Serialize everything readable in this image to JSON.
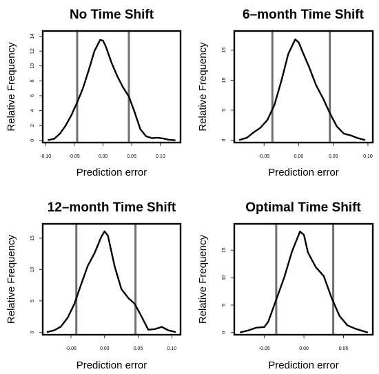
{
  "chart_data": [
    {
      "type": "line",
      "title": "No Time Shift",
      "xlabel": "Prediction error",
      "ylabel": "Relative Frequency",
      "xlim": [
        -0.105,
        0.135
      ],
      "ylim": [
        -0.3,
        14.7
      ],
      "xticks": [
        -0.1,
        -0.05,
        0.0,
        0.05,
        0.1
      ],
      "xtick_labels": [
        "-0.10",
        "-0.05",
        "0.00",
        "0.05",
        "0.10"
      ],
      "yticks": [
        0,
        2,
        4,
        6,
        8,
        10,
        12,
        14
      ],
      "ytick_labels": [
        "0",
        "2",
        "4",
        "6",
        "8",
        "10",
        "12",
        "14"
      ],
      "vlines": [
        -0.045,
        0.045
      ],
      "series": [
        {
          "x": [
            -0.095,
            -0.085,
            -0.075,
            -0.065,
            -0.055,
            -0.045,
            -0.035,
            -0.025,
            -0.015,
            -0.005,
            0.0,
            0.005,
            0.015,
            0.025,
            0.035,
            0.045,
            0.055,
            0.065,
            0.075,
            0.085,
            0.095,
            0.105,
            0.115,
            0.125
          ],
          "values": [
            0.05,
            0.2,
            0.9,
            2.0,
            3.4,
            5.1,
            7.0,
            9.4,
            12.0,
            13.5,
            13.4,
            12.6,
            10.4,
            8.6,
            7.1,
            5.9,
            3.8,
            1.5,
            0.55,
            0.3,
            0.35,
            0.25,
            0.08,
            0.02
          ]
        }
      ]
    },
    {
      "type": "line",
      "title": "6–month Time Shift",
      "xlabel": "Prediction error",
      "ylabel": "Relative Frequency",
      "xlim": [
        -0.093,
        0.107
      ],
      "ylim": [
        -0.4,
        18.2
      ],
      "xticks": [
        -0.05,
        0.0,
        0.05,
        0.1
      ],
      "xtick_labels": [
        "-0.05",
        "0.00",
        "0.05",
        "0.10"
      ],
      "yticks": [
        0,
        5,
        10,
        15
      ],
      "ytick_labels": [
        "0",
        "5",
        "10",
        "15"
      ],
      "vlines": [
        -0.038,
        0.045
      ],
      "series": [
        {
          "x": [
            -0.085,
            -0.075,
            -0.065,
            -0.055,
            -0.045,
            -0.035,
            -0.025,
            -0.015,
            -0.005,
            0.0,
            0.005,
            0.015,
            0.025,
            0.035,
            0.045,
            0.055,
            0.065,
            0.075,
            0.085,
            0.095
          ],
          "values": [
            0.05,
            0.4,
            1.3,
            2.1,
            3.4,
            5.9,
            9.9,
            14.4,
            16.8,
            16.3,
            14.9,
            12.2,
            9.2,
            7.0,
            4.5,
            2.3,
            1.1,
            0.8,
            0.35,
            0.05
          ]
        }
      ]
    },
    {
      "type": "line",
      "title": "12–month Time Shift",
      "xlabel": "Prediction error",
      "ylabel": "Relative Frequency",
      "xlim": [
        -0.092,
        0.113
      ],
      "ylim": [
        -0.4,
        17.3
      ],
      "xticks": [
        -0.05,
        0.0,
        0.05,
        0.1
      ],
      "xtick_labels": [
        "-0.05",
        "0.00",
        "0.05",
        "0.10"
      ],
      "yticks": [
        0,
        5,
        10,
        15
      ],
      "ytick_labels": [
        "0",
        "5",
        "10",
        "15"
      ],
      "vlines": [
        -0.042,
        0.046
      ],
      "series": [
        {
          "x": [
            -0.085,
            -0.075,
            -0.065,
            -0.055,
            -0.045,
            -0.035,
            -0.025,
            -0.015,
            -0.005,
            0.0,
            0.005,
            0.015,
            0.025,
            0.035,
            0.045,
            0.055,
            0.065,
            0.075,
            0.085,
            0.095,
            0.105
          ],
          "values": [
            0.05,
            0.3,
            0.9,
            2.3,
            4.5,
            7.6,
            10.6,
            12.6,
            15.2,
            16.1,
            15.4,
            10.5,
            6.9,
            5.5,
            4.5,
            2.5,
            0.4,
            0.5,
            0.85,
            0.3,
            0.05
          ]
        }
      ]
    },
    {
      "type": "line",
      "title": "Optimal Time Shift",
      "xlabel": "Prediction error",
      "ylabel": "Relative Frequency",
      "xlim": [
        -0.088,
        0.087
      ],
      "ylim": [
        -0.4,
        19.8
      ],
      "xticks": [
        -0.05,
        0.0,
        0.05
      ],
      "xtick_labels": [
        "-0.05",
        "0.00",
        "0.05"
      ],
      "yticks": [
        0,
        5,
        10,
        15
      ],
      "ytick_labels": [
        "0",
        "5",
        "10",
        "15"
      ],
      "vlines": [
        -0.035,
        0.037
      ],
      "series": [
        {
          "x": [
            -0.08,
            -0.07,
            -0.06,
            -0.05,
            -0.045,
            -0.035,
            -0.025,
            -0.015,
            -0.005,
            0.0,
            0.005,
            0.015,
            0.025,
            0.035,
            0.045,
            0.055,
            0.065,
            0.075,
            0.08
          ],
          "values": [
            0.05,
            0.4,
            0.9,
            1.0,
            2.0,
            6.0,
            10.0,
            14.8,
            18.4,
            17.8,
            14.6,
            11.9,
            10.3,
            6.3,
            3.0,
            1.3,
            0.7,
            0.25,
            0.05
          ]
        }
      ]
    }
  ],
  "style": {
    "line_color": "#000000",
    "vline_color": "#707070",
    "frame_color": "#000000"
  }
}
